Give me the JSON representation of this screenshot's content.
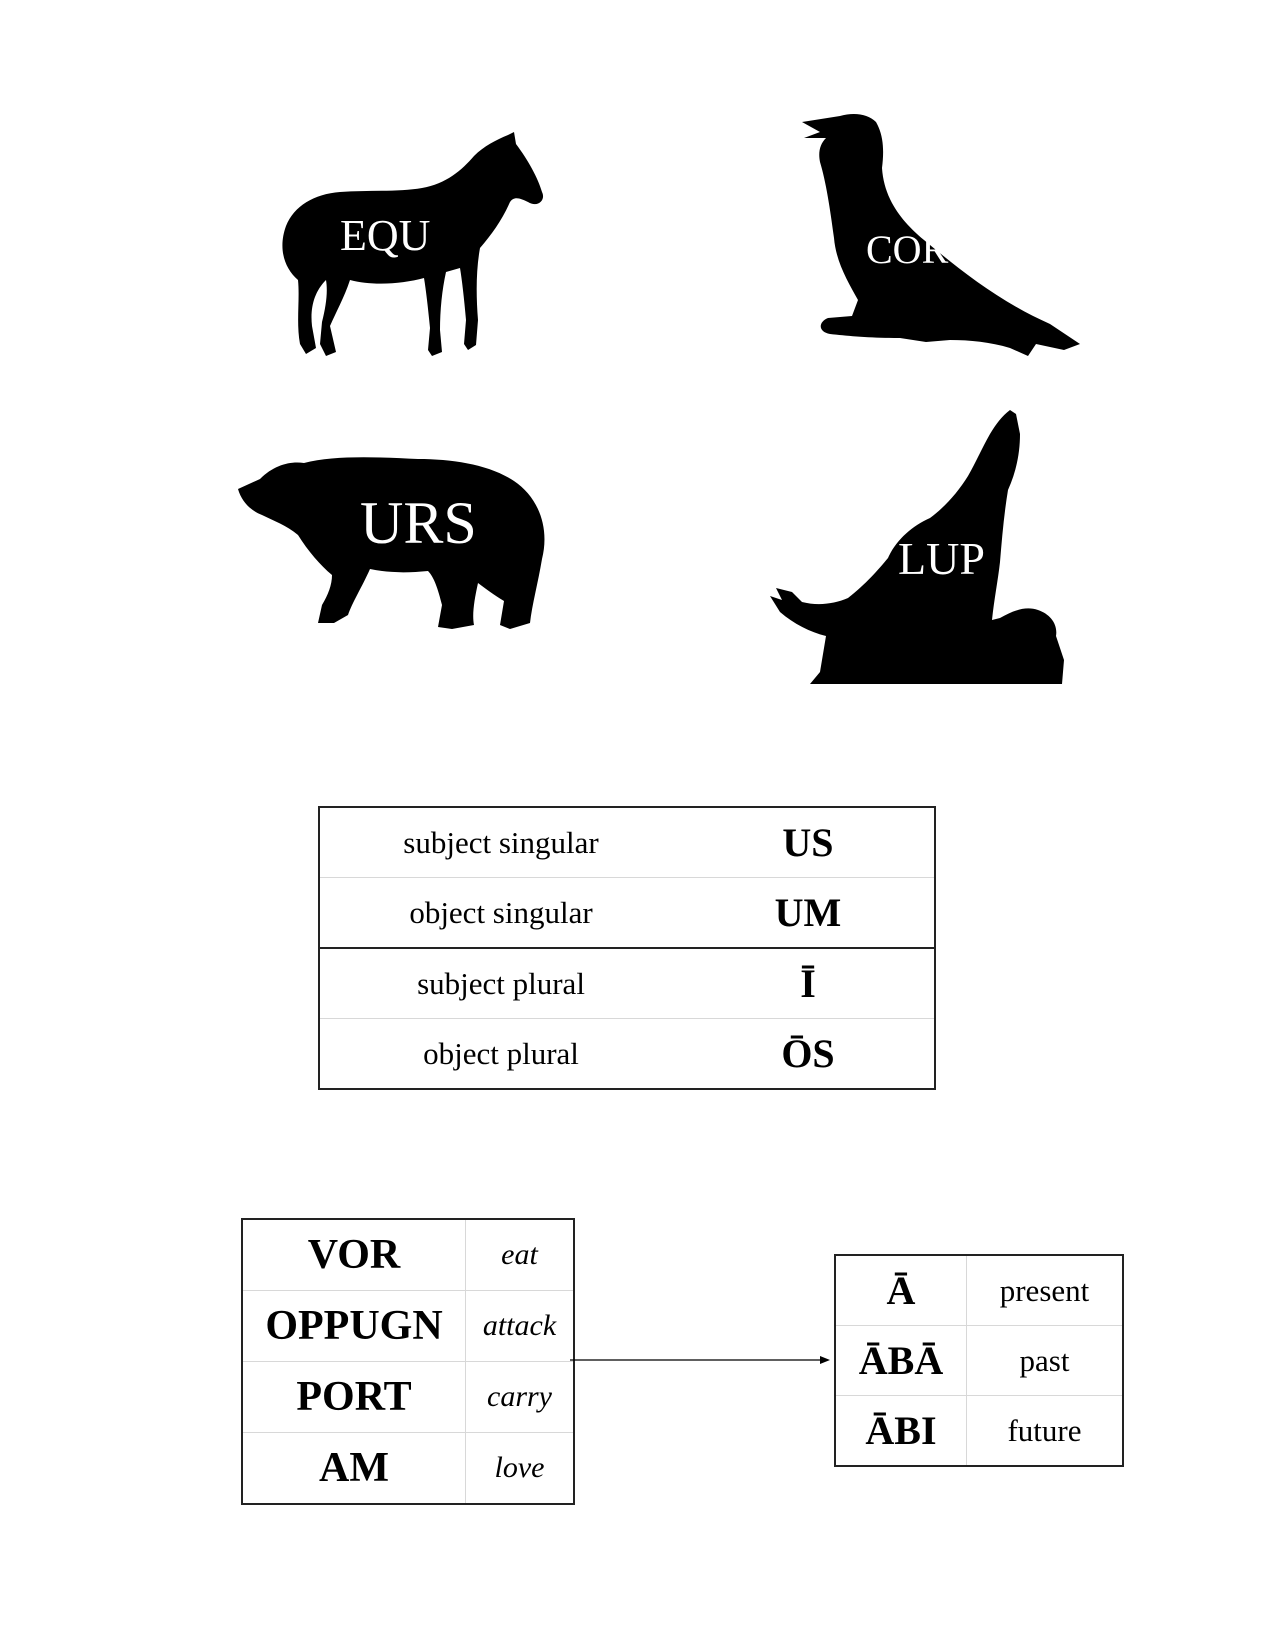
{
  "animals": [
    {
      "name": "horse",
      "label": "EQU"
    },
    {
      "name": "raven",
      "label": "CORV"
    },
    {
      "name": "bear",
      "label": "URS"
    },
    {
      "name": "wolf",
      "label": "LUP"
    }
  ],
  "endings": [
    {
      "label": "subject singular",
      "ending": "US"
    },
    {
      "label": "object singular",
      "ending": "UM"
    },
    {
      "label": "subject plural",
      "ending": "Ī"
    },
    {
      "label": "object plural",
      "ending": "ŌS"
    }
  ],
  "verbs": [
    {
      "stem": "VOR",
      "meaning": "eat"
    },
    {
      "stem": "OPPUGN",
      "meaning": "attack"
    },
    {
      "stem": "PORT",
      "meaning": "carry"
    },
    {
      "stem": "AM",
      "meaning": "love"
    }
  ],
  "tenses": [
    {
      "suffix": "Ā",
      "tense": "present"
    },
    {
      "suffix": "ĀBĀ",
      "tense": "past"
    },
    {
      "suffix": "ĀBI",
      "tense": "future"
    }
  ]
}
